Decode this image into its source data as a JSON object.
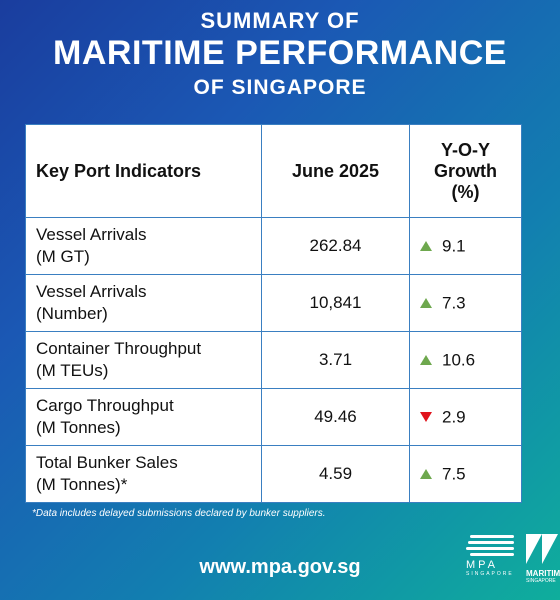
{
  "header": {
    "line1": "SUMMARY OF",
    "line2": "MARITIME PERFORMANCE",
    "line3": "OF SINGAPORE"
  },
  "table": {
    "columns": [
      "Key Port Indicators",
      "June 2025",
      "Y-O-Y Growth (%)"
    ],
    "growth_header_lines": [
      "Y-O-Y",
      "Growth",
      "(%)"
    ],
    "rows": [
      {
        "indicator_line1": "Vessel Arrivals",
        "indicator_line2": "(M GT)",
        "value": "262.84",
        "growth": "9.1",
        "direction": "up"
      },
      {
        "indicator_line1": "Vessel Arrivals",
        "indicator_line2": "(Number)",
        "value": "10,841",
        "growth": "7.3",
        "direction": "up"
      },
      {
        "indicator_line1": "Container Throughput",
        "indicator_line2": "(M TEUs)",
        "value": "3.71",
        "growth": "10.6",
        "direction": "up"
      },
      {
        "indicator_line1": "Cargo Throughput",
        "indicator_line2": "(M Tonnes)",
        "value": "49.46",
        "growth": "2.9",
        "direction": "down"
      },
      {
        "indicator_line1": "Total Bunker Sales",
        "indicator_line2": "(M Tonnes)*",
        "value": "4.59",
        "growth": "7.5",
        "direction": "up"
      }
    ]
  },
  "footnote": "*Data includes delayed submissions declared by bunker suppliers.",
  "website": "www.mpa.gov.sg",
  "logos": {
    "mpa_text": "MPA",
    "mpa_sub": "SINGAPORE",
    "maritime_text": "MARITIME",
    "maritime_sub": "SINGAPORE"
  },
  "colors": {
    "up_arrow": "#6ea84e",
    "down_arrow": "#e0141d",
    "table_border": "#3a7fc1"
  }
}
